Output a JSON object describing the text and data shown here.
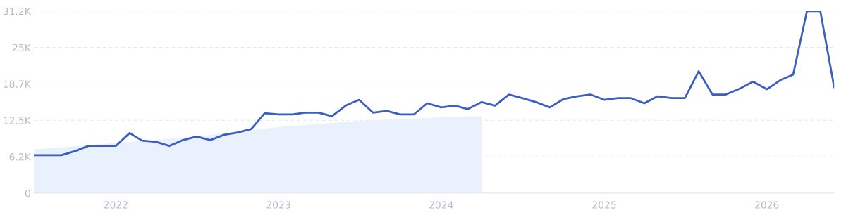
{
  "chart_data": {
    "type": "line",
    "x": [
      "2021-07",
      "2021-08",
      "2021-09",
      "2021-10",
      "2021-11",
      "2021-12",
      "2022-01",
      "2022-02",
      "2022-03",
      "2022-04",
      "2022-05",
      "2022-06",
      "2022-07",
      "2022-08",
      "2022-09",
      "2022-10",
      "2022-11",
      "2022-12",
      "2023-01",
      "2023-02",
      "2023-03",
      "2023-04",
      "2023-05",
      "2023-06",
      "2023-07",
      "2023-08",
      "2023-09",
      "2023-10",
      "2023-11",
      "2023-12",
      "2024-01",
      "2024-02",
      "2024-03",
      "2024-04",
      "2024-05",
      "2024-06",
      "2024-07",
      "2024-08",
      "2024-09",
      "2024-10",
      "2024-11",
      "2024-12",
      "2025-01",
      "2025-02",
      "2025-03",
      "2025-04",
      "2025-05",
      "2025-06",
      "2025-07",
      "2025-08",
      "2025-09",
      "2025-10",
      "2025-11",
      "2025-12",
      "2026-01",
      "2026-02",
      "2026-03",
      "2026-04",
      "2026-05",
      "2026-06"
    ],
    "series": [
      {
        "type": "area",
        "color": "#e8f1fc",
        "x": [
          "2021-07",
          "2022-01",
          "2022-07",
          "2023-01",
          "2023-07",
          "2024-01",
          "2024-04"
        ],
        "values": [
          7500,
          8600,
          9700,
          11300,
          12400,
          13000,
          13200
        ]
      },
      {
        "color": "#3a5fbf",
        "values": [
          6500,
          6500,
          6500,
          7200,
          8100,
          8100,
          8100,
          10300,
          9000,
          8800,
          8100,
          9100,
          9700,
          9100,
          10000,
          10400,
          11000,
          13700,
          13500,
          13500,
          13800,
          13800,
          13200,
          15000,
          16000,
          13800,
          14100,
          13500,
          13500,
          15400,
          14700,
          15000,
          14400,
          15600,
          15000,
          16900,
          16300,
          15600,
          14700,
          16100,
          16600,
          16900,
          16000,
          16300,
          16300,
          15400,
          16600,
          16300,
          16300,
          20900,
          16900,
          16900,
          17900,
          19100,
          17800,
          19400,
          20300,
          31200,
          31200,
          18200
        ]
      }
    ],
    "xlim": [
      "2021-07",
      "2026-06"
    ],
    "xticks": [
      {
        "value": "2022-01",
        "label": "2022"
      },
      {
        "value": "2023-01",
        "label": "2023"
      },
      {
        "value": "2024-01",
        "label": "2024"
      },
      {
        "value": "2025-01",
        "label": "2025"
      },
      {
        "value": "2026-01",
        "label": "2026"
      }
    ],
    "ylim": [
      0,
      31200
    ],
    "yticks": [
      0,
      {
        "value": 6240,
        "label": "6.2K"
      },
      {
        "value": 12480,
        "label": "12.5K"
      },
      {
        "value": 18720,
        "label": "18.7K"
      },
      {
        "value": 24960,
        "label": "25K"
      },
      {
        "value": 31200,
        "label": "31.2K"
      }
    ],
    "grid": "y",
    "line_style": "solid",
    "marker": "none"
  }
}
